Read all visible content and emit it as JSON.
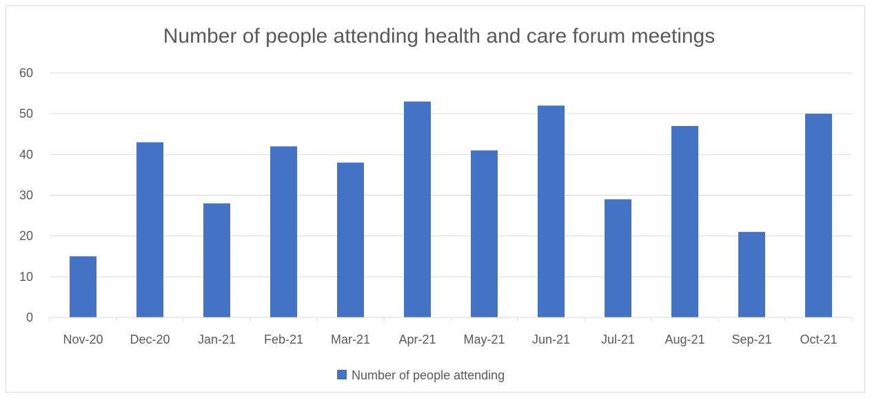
{
  "chart_data": {
    "type": "bar",
    "title": "Number of people attending health and care forum meetings",
    "xlabel": "",
    "ylabel": "",
    "categories": [
      "Nov-20",
      "Dec-20",
      "Jan-21",
      "Feb-21",
      "Mar-21",
      "Apr-21",
      "May-21",
      "Jun-21",
      "Jul-21",
      "Aug-21",
      "Sep-21",
      "Oct-21"
    ],
    "series": [
      {
        "name": "Number of people attending",
        "values": [
          15,
          43,
          28,
          42,
          38,
          53,
          41,
          52,
          29,
          47,
          21,
          50
        ],
        "color": "#4472c4"
      }
    ],
    "ylim": [
      0,
      60
    ],
    "yticks": [
      0,
      10,
      20,
      30,
      40,
      50,
      60
    ],
    "grid": true,
    "legend": "bottom"
  }
}
